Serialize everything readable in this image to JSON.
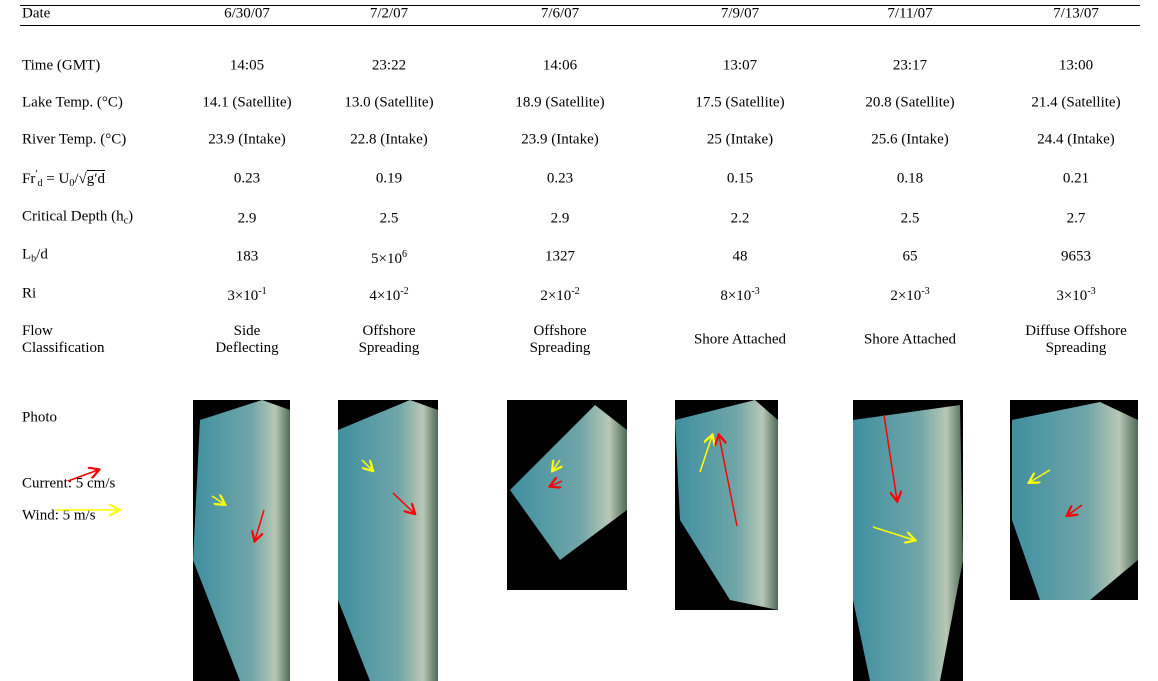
{
  "table": {
    "rows": [
      {
        "label": "Date",
        "cells": [
          "6/30/07",
          "7/2/07",
          "7/6/07",
          "7/9/07",
          "7/11/07",
          "7/13/07"
        ]
      },
      {
        "label": "Time (GMT)",
        "cells": [
          "14:05",
          "23:22",
          "14:06",
          "13:07",
          "23:17",
          "13:00"
        ]
      },
      {
        "label": "Lake Temp. (°C)",
        "cells": [
          "14.1 (Satellite)",
          "13.0 (Satellite)",
          "18.9 (Satellite)",
          "17.5 (Satellite)",
          "20.8 (Satellite)",
          "21.4 (Satellite)"
        ]
      },
      {
        "label": "River Temp. (°C)",
        "cells": [
          "23.9 (Intake)",
          "22.8 (Intake)",
          "23.9 (Intake)",
          "25 (Intake)",
          "25.6 (Intake)",
          "24.4 (Intake)"
        ]
      },
      {
        "label": {
          "parts": [
            {
              "text": "Fr"
            },
            {
              "text": "′",
              "style": "sup"
            },
            {
              "text": "d",
              "style": "sub"
            },
            {
              "text": " = U"
            },
            {
              "text": "0",
              "style": "sub"
            },
            {
              "text": "/"
            },
            {
              "text": "√"
            },
            {
              "text": "g′d",
              "style": "over"
            }
          ]
        },
        "cells": [
          "0.23",
          "0.19",
          "0.23",
          "0.15",
          "0.18",
          "0.21"
        ]
      },
      {
        "label": {
          "parts": [
            {
              "text": "Critical Depth (h"
            },
            {
              "text": "c",
              "style": "sub"
            },
            {
              "text": ")"
            }
          ]
        },
        "cells": [
          "2.9",
          "2.5",
          "2.9",
          "2.2",
          "2.5",
          "2.7"
        ]
      },
      {
        "label": {
          "parts": [
            {
              "text": "L"
            },
            {
              "text": "b",
              "style": "sub"
            },
            {
              "text": "/d"
            }
          ]
        },
        "cells": [
          "183",
          {
            "base": "5×10",
            "exp": "6"
          },
          "1327",
          "48",
          "65",
          "9653"
        ]
      },
      {
        "label": "Ri",
        "cells": [
          {
            "base": "3×10",
            "exp": "-1"
          },
          {
            "base": "4×10",
            "exp": "-2"
          },
          {
            "base": "2×10",
            "exp": "-2"
          },
          {
            "base": "8×10",
            "exp": "-3"
          },
          {
            "base": "2×10",
            "exp": "-3"
          },
          {
            "base": "3×10",
            "exp": "-3"
          }
        ]
      },
      {
        "label": {
          "lines": [
            "Flow",
            "Classification"
          ]
        },
        "cells": [
          {
            "lines": [
              "Side",
              "Deflecting"
            ]
          },
          {
            "lines": [
              "Offshore",
              "Spreading"
            ]
          },
          {
            "lines": [
              "Offshore",
              "Spreading"
            ]
          },
          "Shore Attached",
          "Shore Attached",
          {
            "lines": [
              "Diffuse Offshore",
              "Spreading"
            ]
          }
        ]
      }
    ],
    "photo_label": "Photo",
    "legend": {
      "current": "Current: 5 cm/s",
      "wind": "Wind: 5 m/s"
    }
  }
}
